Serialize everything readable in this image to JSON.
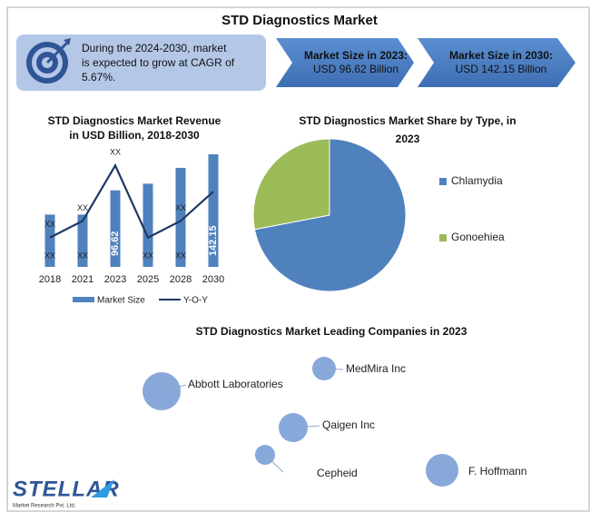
{
  "title": "STD Diagnostics Market",
  "cagr_note": [
    "During the 2024-2030, market",
    "is expected to grow at CAGR of",
    "5.67%."
  ],
  "callouts": [
    {
      "label": "Market Size in 2023:",
      "value": "USD 96.62 Billion"
    },
    {
      "label": "Market Size in 2030:",
      "value": "USD 142.15 Billion"
    }
  ],
  "chart_data": [
    {
      "type": "bar",
      "title": [
        "STD Diagnostics Market Revenue",
        "in USD Billion, 2018-2030"
      ],
      "categories": [
        "2018",
        "2021",
        "2023",
        "2025",
        "2028",
        "2030"
      ],
      "ylim": [
        0,
        165
      ],
      "series": [
        {
          "name": "Market Size",
          "kind": "bar",
          "color": "#4f81bd",
          "values": [
            66,
            66,
            96.62,
            105,
            125,
            142.15
          ],
          "value_labels": [
            "XX",
            "XX",
            "96.62",
            "XX",
            "XX",
            "142.15"
          ]
        },
        {
          "name": "Y-O-Y",
          "kind": "line",
          "color": "#1f3864",
          "values": [
            37,
            58,
            128,
            37,
            58,
            95
          ],
          "value_labels": [
            "XX",
            "XX",
            "XX",
            null,
            "XX",
            null
          ]
        }
      ]
    },
    {
      "type": "pie",
      "title": [
        "STD Diagnostics Market Share by Type, in",
        "2023"
      ],
      "categories": [
        "Chlamydia",
        "Gonoehiea"
      ],
      "values": [
        72,
        28
      ],
      "colors": [
        "#4f81bd",
        "#9bbb59"
      ]
    }
  ],
  "companies": {
    "title": "STD Diagnostics Market Leading Companies in 2023",
    "names": [
      "Abbott Laboratories",
      "MedMira Inc",
      "Qaigen Inc",
      "Cepheid",
      "F. Hoffmann"
    ]
  },
  "logo": {
    "name": "STELLAR",
    "tagline": "Market Research Pvt. Ltd."
  }
}
